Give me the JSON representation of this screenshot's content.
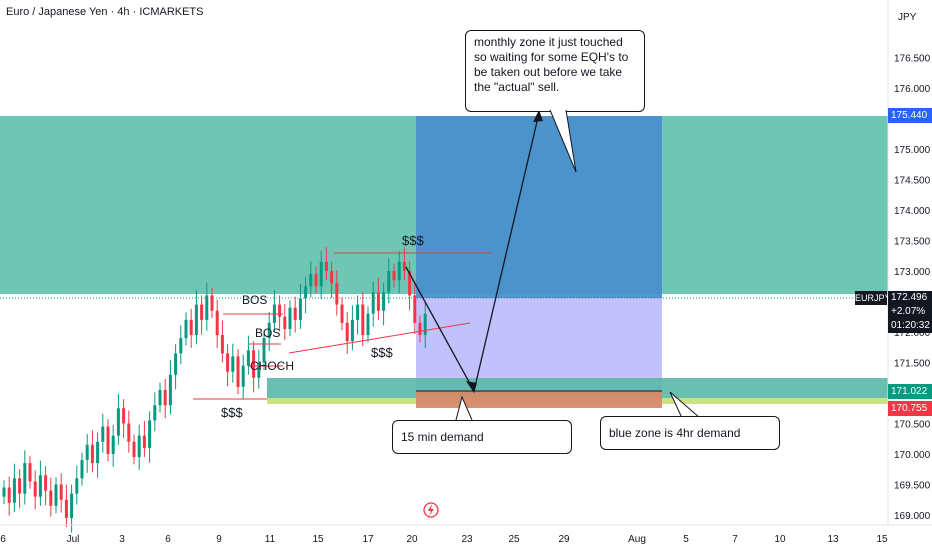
{
  "header": {
    "title": "Euro / Japanese Yen · 4h · ICMARKETS"
  },
  "price_axis": {
    "currency": "JPY",
    "last_symbol": "EURJPY",
    "last_price": "172.496",
    "change_pct": "+2.07%",
    "countdown": "01:20:32",
    "tag_blue": "175.440",
    "tag_teal": "171.022",
    "tag_red": "170.755"
  },
  "annotations": {
    "callout_top": "monthly zone it just touched so waiting for some EQH's to be taken out before we take the \"actual\" sell.",
    "callout_15min": "15 min demand",
    "callout_blue": "blue zone is 4hr demand",
    "bos1": "BOS",
    "bos2": "BOS",
    "choch": "CHOCH",
    "liq_low": "$$$",
    "liq_top": "$$$",
    "liq_mid": "$$$"
  },
  "colors": {
    "up": "#089981",
    "down": "#f23645",
    "monthly_zone": "#4fb9a3",
    "target_zone": "#4a8fcc",
    "entry_zone": "#b9b6fb",
    "demand_4h": "#5ab8a8",
    "demand_15m": "#d68a6a",
    "yellow_band": "#c9e07a"
  },
  "chart_data": {
    "type": "candlestick",
    "symbol": "EURJPY",
    "timeframe": "4h",
    "y_ticks": [
      169.0,
      169.5,
      170.0,
      170.5,
      171.0,
      171.5,
      172.0,
      172.5,
      173.0,
      173.5,
      174.0,
      174.5,
      175.0,
      175.5,
      176.0,
      176.5
    ],
    "ylim": [
      168.95,
      177.15
    ],
    "x_tick_labels": [
      "6",
      "Jul",
      "3",
      "6",
      "9",
      "11",
      "15",
      "17",
      "20",
      "23",
      "25",
      "29",
      "Aug",
      "5",
      "7",
      "10",
      "13",
      "15"
    ],
    "candles_close": [
      169.45,
      169.2,
      169.6,
      169.35,
      169.85,
      169.55,
      169.3,
      169.65,
      169.4,
      169.15,
      169.5,
      169.25,
      168.95,
      169.35,
      169.6,
      169.9,
      170.15,
      169.85,
      170.2,
      170.45,
      170.0,
      170.3,
      170.75,
      170.5,
      170.2,
      169.95,
      170.3,
      170.1,
      170.55,
      170.8,
      171.05,
      170.8,
      171.3,
      171.65,
      171.9,
      172.2,
      171.95,
      172.45,
      172.2,
      172.6,
      172.35,
      171.95,
      171.65,
      171.35,
      171.6,
      171.1,
      171.45,
      171.7,
      171.25,
      171.5,
      171.9,
      172.15,
      172.45,
      172.25,
      172.05,
      172.4,
      172.2,
      172.55,
      172.75,
      172.95,
      172.75,
      173.15,
      173.0,
      172.8,
      172.45,
      172.15,
      171.85,
      172.2,
      172.45,
      171.95,
      172.3,
      172.65,
      172.35,
      172.65,
      173.0,
      172.85,
      173.15,
      173.0,
      172.6,
      172.15,
      171.95,
      172.3
    ]
  }
}
